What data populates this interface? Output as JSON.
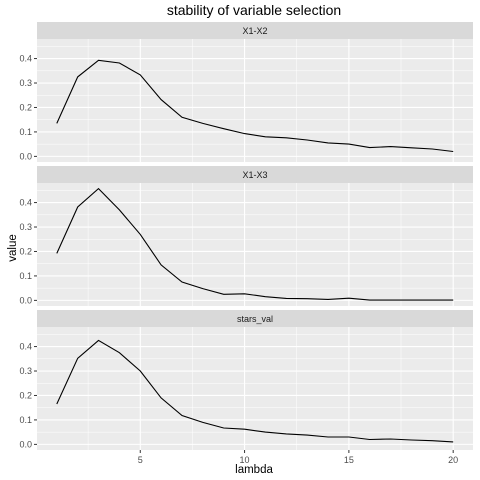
{
  "chart_data": {
    "type": "line",
    "title": "stability of variable selection",
    "xlabel": "lambda",
    "ylabel": "value",
    "xlim": [
      0.05,
      20.95
    ],
    "ylim": [
      -0.023,
      0.48
    ],
    "x_ticks": [
      5,
      10,
      15,
      20
    ],
    "y_ticks": [
      0.0,
      0.1,
      0.2,
      0.3,
      0.4
    ],
    "y_tick_labels": [
      "0.0",
      "0.1",
      "0.2",
      "0.3",
      "0.4"
    ],
    "grid": true,
    "x": [
      1,
      2,
      3,
      4,
      5,
      6,
      7,
      8,
      9,
      10,
      11,
      12,
      13,
      14,
      15,
      16,
      17,
      18,
      19,
      20
    ],
    "facets": [
      {
        "name": "X1-X2",
        "values": [
          0.135,
          0.325,
          0.393,
          0.382,
          0.333,
          0.232,
          0.16,
          0.135,
          0.113,
          0.093,
          0.08,
          0.076,
          0.067,
          0.055,
          0.05,
          0.036,
          0.04,
          0.035,
          0.03,
          0.02
        ]
      },
      {
        "name": "X1-X3",
        "values": [
          0.192,
          0.382,
          0.457,
          0.37,
          0.27,
          0.145,
          0.075,
          0.048,
          0.025,
          0.027,
          0.015,
          0.008,
          0.007,
          0.004,
          0.009,
          0.001,
          0.001,
          0.001,
          0.001,
          0.001
        ]
      },
      {
        "name": "stars_val",
        "values": [
          0.165,
          0.352,
          0.425,
          0.375,
          0.3,
          0.19,
          0.118,
          0.09,
          0.067,
          0.062,
          0.05,
          0.043,
          0.038,
          0.03,
          0.03,
          0.02,
          0.022,
          0.018,
          0.015,
          0.01
        ]
      }
    ]
  }
}
